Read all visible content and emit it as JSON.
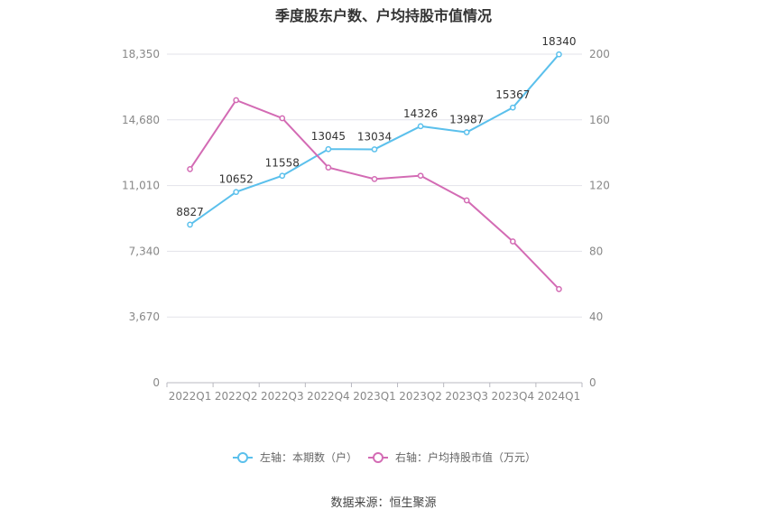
{
  "chart_data": {
    "type": "line",
    "title": "季度股东户数、户均持股市值情况",
    "categories": [
      "2022Q1",
      "2022Q2",
      "2022Q3",
      "2022Q4",
      "2023Q1",
      "2023Q2",
      "2023Q3",
      "2023Q4",
      "2024Q1"
    ],
    "series": [
      {
        "name": "左轴：本期数（户）",
        "axis": "left",
        "color": "#5bc0ec",
        "values": [
          8827,
          10652,
          11558,
          13045,
          13034,
          14326,
          13987,
          15367,
          18340
        ],
        "labels": [
          "8827",
          "10652",
          "11558",
          "13045",
          "13034",
          "14326",
          "13987",
          "15367",
          "18340"
        ]
      },
      {
        "name": "右轴：户均持股市值（万元）",
        "axis": "right",
        "color": "#d36bb4",
        "values": [
          130,
          172,
          161,
          131,
          124,
          126,
          111,
          86,
          57
        ]
      }
    ],
    "left_axis": {
      "min": 0,
      "max": 18350,
      "ticks": [
        "0",
        "3,670",
        "7,340",
        "11,010",
        "14,680",
        "18,350"
      ]
    },
    "right_axis": {
      "min": 0,
      "max": 200,
      "ticks": [
        "0",
        "40",
        "80",
        "120",
        "160",
        "200"
      ]
    },
    "grid": true,
    "legend_position": "bottom"
  },
  "source_text": "数据来源：恒生聚源"
}
